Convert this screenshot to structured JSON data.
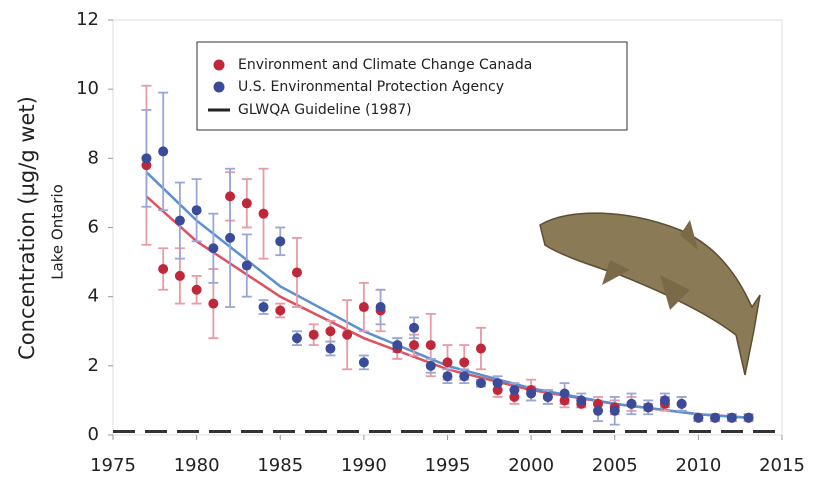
{
  "chart_data": {
    "type": "scatter",
    "ylabel": "Concentration (µg/g wet)",
    "subtitle": "Lake Ontario",
    "xlim": [
      1975,
      2015
    ],
    "xticks": [
      1975,
      1980,
      1985,
      1990,
      1995,
      2000,
      2005,
      2010,
      2015
    ],
    "ylim": [
      0,
      12
    ],
    "yticks": [
      0,
      2,
      4,
      6,
      8,
      10,
      12
    ],
    "series": [
      {
        "name": "Environment and Climate Change Canada",
        "color": "#c0283a",
        "error_color": "#e89aa5",
        "x": [
          1977,
          1978,
          1979,
          1980,
          1981,
          1982,
          1983,
          1984,
          1985,
          1986,
          1987,
          1988,
          1989,
          1990,
          1991,
          1992,
          1993,
          1994,
          1995,
          1996,
          1997,
          1998,
          1999,
          2000,
          2001,
          2002,
          2003,
          2004,
          2005,
          2006,
          2007,
          2008,
          2009,
          2010,
          2011,
          2012,
          2013
        ],
        "values": [
          7.8,
          4.8,
          4.6,
          4.2,
          3.8,
          6.9,
          6.7,
          6.4,
          3.6,
          4.7,
          2.9,
          3.0,
          2.9,
          3.7,
          3.6,
          2.5,
          2.6,
          2.6,
          2.1,
          2.1,
          2.5,
          1.3,
          1.1,
          1.3,
          1.1,
          1.0,
          0.9,
          0.9,
          0.8,
          0.9,
          0.8,
          0.9,
          0.9,
          0.5,
          0.5,
          0.5,
          0.5
        ],
        "errors": [
          2.3,
          0.6,
          0.8,
          0.4,
          1.0,
          0.7,
          0.7,
          1.3,
          0.2,
          1.0,
          0.3,
          0.3,
          1.0,
          0.7,
          0.6,
          0.3,
          0.3,
          0.9,
          0.5,
          0.5,
          0.6,
          0.2,
          0.2,
          0.3,
          0.2,
          0.2,
          0.1,
          0.2,
          0.2,
          0.2,
          0.1,
          0.2,
          0.2,
          0.1,
          0.1,
          0.1,
          0.1
        ]
      },
      {
        "name": "U.S. Environmental Protection Agency",
        "color": "#3a4b9a",
        "error_color": "#9aa6d6",
        "x": [
          1977,
          1978,
          1979,
          1980,
          1981,
          1982,
          1983,
          1984,
          1985,
          1986,
          1988,
          1990,
          1991,
          1992,
          1993,
          1994,
          1995,
          1996,
          1997,
          1998,
          1999,
          2000,
          2001,
          2002,
          2003,
          2004,
          2005,
          2006,
          2007,
          2008,
          2009,
          2010,
          2011,
          2012,
          2013
        ],
        "values": [
          8.0,
          8.2,
          6.2,
          6.5,
          5.4,
          5.7,
          4.9,
          3.7,
          5.6,
          2.8,
          2.5,
          2.1,
          3.7,
          2.6,
          3.1,
          2.0,
          1.7,
          1.7,
          1.5,
          1.5,
          1.3,
          1.2,
          1.1,
          1.2,
          1.0,
          0.7,
          0.7,
          0.9,
          0.8,
          1.0,
          0.9,
          0.5,
          0.5,
          0.5,
          0.5
        ],
        "errors": [
          1.4,
          1.7,
          1.1,
          0.9,
          1.0,
          2.0,
          0.9,
          0.2,
          0.4,
          0.2,
          0.2,
          0.2,
          0.5,
          0.2,
          0.3,
          0.2,
          0.2,
          0.2,
          0.1,
          0.2,
          0.2,
          0.2,
          0.2,
          0.3,
          0.2,
          0.3,
          0.4,
          0.3,
          0.2,
          0.2,
          0.2,
          0.1,
          0.1,
          0.1,
          0.1
        ]
      }
    ],
    "fits": [
      {
        "color": "#e05060",
        "x": [
          1977,
          1980,
          1985,
          1990,
          1995,
          2000,
          2005,
          2010,
          2013
        ],
        "values": [
          6.9,
          5.6,
          4.0,
          2.8,
          1.9,
          1.3,
          0.9,
          0.6,
          0.5
        ]
      },
      {
        "color": "#5a8fd0",
        "x": [
          1977,
          1980,
          1985,
          1990,
          1995,
          2000,
          2005,
          2010,
          2013
        ],
        "values": [
          7.6,
          6.2,
          4.3,
          3.0,
          2.0,
          1.35,
          0.9,
          0.6,
          0.5
        ]
      }
    ],
    "guideline": {
      "name": "GLWQA Guideline (1987)",
      "value": 0.1,
      "color": "#333333"
    }
  }
}
